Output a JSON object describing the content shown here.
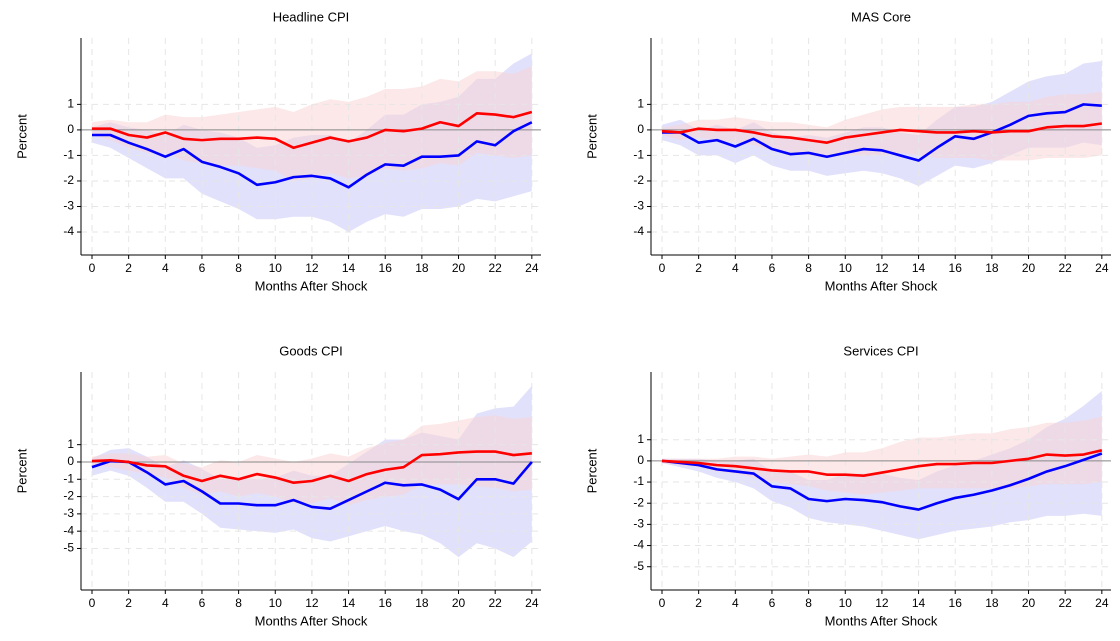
{
  "chart_data": [
    {
      "type": "line",
      "title": "Headline CPI",
      "xlabel": "Months After Shock",
      "ylabel": "Percent",
      "x": [
        0,
        1,
        2,
        3,
        4,
        5,
        6,
        7,
        8,
        9,
        10,
        11,
        12,
        13,
        14,
        15,
        16,
        17,
        18,
        19,
        20,
        21,
        22,
        23,
        24
      ],
      "xlim": [
        -0.6,
        24.5
      ],
      "xticks": [
        0,
        2,
        4,
        6,
        8,
        10,
        12,
        14,
        16,
        18,
        20,
        22,
        24
      ],
      "ylim": [
        -4.9,
        3.6
      ],
      "yticks": [
        -4,
        -3,
        -2,
        -1,
        0,
        1
      ],
      "grid": true,
      "series": [
        {
          "color": "#0000ff",
          "band_color": "#c8c8fa",
          "values": [
            -0.2,
            -0.2,
            -0.5,
            -0.75,
            -1.05,
            -0.75,
            -1.25,
            -1.45,
            -1.7,
            -2.15,
            -2.05,
            -1.85,
            -1.8,
            -1.9,
            -2.25,
            -1.75,
            -1.35,
            -1.4,
            -1.05,
            -1.05,
            -1.0,
            -0.45,
            -0.6,
            -0.05,
            0.3
          ],
          "lower": [
            -0.5,
            -0.7,
            -1.1,
            -1.5,
            -1.9,
            -1.9,
            -2.5,
            -2.8,
            -3.1,
            -3.5,
            -3.5,
            -3.4,
            -3.4,
            -3.6,
            -4.0,
            -3.6,
            -3.3,
            -3.4,
            -3.1,
            -3.1,
            -3.0,
            -2.7,
            -2.8,
            -2.6,
            -2.4
          ],
          "upper": [
            0.1,
            0.3,
            0.1,
            0,
            -0.2,
            0.2,
            0,
            -0.1,
            -0.3,
            -0.7,
            -0.6,
            -0.3,
            -0.2,
            -0.2,
            -0.5,
            0,
            0.6,
            0.6,
            1.0,
            1.1,
            1.3,
            2.0,
            2.0,
            2.6,
            3.0
          ]
        },
        {
          "color": "#ff0000",
          "band_color": "#fad6d6",
          "values": [
            0.05,
            0.05,
            -0.2,
            -0.3,
            -0.1,
            -0.35,
            -0.4,
            -0.35,
            -0.35,
            -0.3,
            -0.35,
            -0.7,
            -0.5,
            -0.3,
            -0.45,
            -0.3,
            0.0,
            -0.05,
            0.05,
            0.3,
            0.15,
            0.65,
            0.6,
            0.5,
            0.7
          ],
          "lower": [
            -0.2,
            -0.4,
            -0.7,
            -0.9,
            -0.9,
            -1.2,
            -1.3,
            -1.4,
            -1.4,
            -1.5,
            -1.6,
            -2.0,
            -1.9,
            -1.7,
            -1.9,
            -1.8,
            -1.5,
            -1.6,
            -1.5,
            -1.3,
            -1.4,
            -0.9,
            -1.0,
            -1.1,
            -1.0
          ],
          "upper": [
            0.3,
            0.4,
            0.3,
            0.3,
            0.6,
            0.5,
            0.5,
            0.6,
            0.7,
            0.8,
            0.9,
            0.7,
            1.0,
            1.2,
            1.1,
            1.3,
            1.6,
            1.6,
            1.7,
            2.0,
            1.9,
            2.3,
            2.3,
            2.2,
            2.5
          ]
        }
      ]
    },
    {
      "type": "line",
      "title": "MAS Core",
      "xlabel": "Months After Shock",
      "ylabel": "Percent",
      "x": [
        0,
        1,
        2,
        3,
        4,
        5,
        6,
        7,
        8,
        9,
        10,
        11,
        12,
        13,
        14,
        15,
        16,
        17,
        18,
        19,
        20,
        21,
        22,
        23,
        24
      ],
      "xlim": [
        -0.6,
        24.5
      ],
      "xticks": [
        0,
        2,
        4,
        6,
        8,
        10,
        12,
        14,
        16,
        18,
        20,
        22,
        24
      ],
      "ylim": [
        -4.9,
        3.6
      ],
      "yticks": [
        -4,
        -3,
        -2,
        -1,
        0,
        1
      ],
      "grid": true,
      "series": [
        {
          "color": "#0000ff",
          "band_color": "#c8c8fa",
          "values": [
            -0.1,
            -0.1,
            -0.5,
            -0.4,
            -0.65,
            -0.35,
            -0.75,
            -0.95,
            -0.9,
            -1.05,
            -0.9,
            -0.75,
            -0.8,
            -1.0,
            -1.2,
            -0.7,
            -0.25,
            -0.35,
            -0.1,
            0.2,
            0.55,
            0.65,
            0.7,
            1.0,
            0.95
          ],
          "lower": [
            -0.4,
            -0.6,
            -1.0,
            -1.0,
            -1.3,
            -1.0,
            -1.4,
            -1.6,
            -1.6,
            -1.8,
            -1.7,
            -1.6,
            -1.7,
            -1.9,
            -2.2,
            -1.8,
            -1.4,
            -1.5,
            -1.3,
            -1.0,
            -0.7,
            -0.7,
            -0.7,
            -0.5,
            -0.6
          ],
          "upper": [
            0.2,
            0.4,
            0,
            0.2,
            0,
            0.3,
            -0.1,
            -0.3,
            -0.2,
            -0.3,
            -0.1,
            0.1,
            0.1,
            -0.1,
            -0.2,
            0.4,
            0.9,
            0.9,
            1.1,
            1.5,
            1.9,
            2.1,
            2.2,
            2.6,
            2.7
          ]
        },
        {
          "color": "#ff0000",
          "band_color": "#fad6d6",
          "values": [
            -0.05,
            -0.1,
            0.05,
            0,
            0,
            -0.1,
            -0.25,
            -0.3,
            -0.4,
            -0.5,
            -0.3,
            -0.2,
            -0.1,
            0,
            -0.05,
            -0.1,
            -0.1,
            -0.05,
            -0.1,
            -0.05,
            -0.05,
            0.1,
            0.15,
            0.15,
            0.25
          ],
          "lower": [
            -0.2,
            -0.4,
            -0.3,
            -0.4,
            -0.5,
            -0.6,
            -0.8,
            -0.9,
            -1.0,
            -1.1,
            -1.0,
            -1.0,
            -1.0,
            -0.9,
            -1.0,
            -1.1,
            -1.1,
            -1.1,
            -1.2,
            -1.2,
            -1.2,
            -1.1,
            -1.1,
            -1.1,
            -1.0
          ],
          "upper": [
            0.1,
            0.2,
            0.4,
            0.4,
            0.5,
            0.4,
            0.3,
            0.3,
            0.2,
            0.1,
            0.4,
            0.6,
            0.8,
            0.9,
            0.9,
            0.9,
            0.9,
            1.0,
            1.0,
            1.1,
            1.1,
            1.3,
            1.4,
            1.4,
            1.5
          ]
        }
      ]
    },
    {
      "type": "line",
      "title": "Goods CPI",
      "xlabel": "Months After Shock",
      "ylabel": "Percent",
      "x": [
        0,
        1,
        2,
        3,
        4,
        5,
        6,
        7,
        8,
        9,
        10,
        11,
        12,
        13,
        14,
        15,
        16,
        17,
        18,
        19,
        20,
        21,
        22,
        23,
        24
      ],
      "xlim": [
        -0.6,
        24.5
      ],
      "xticks": [
        0,
        2,
        4,
        6,
        8,
        10,
        12,
        14,
        16,
        18,
        20,
        22,
        24
      ],
      "ylim": [
        -7.4,
        5.2
      ],
      "yticks": [
        -5,
        -4,
        -3,
        -2,
        -1,
        0,
        1
      ],
      "grid": true,
      "series": [
        {
          "color": "#0000ff",
          "band_color": "#c8c8fa",
          "values": [
            -0.3,
            0.05,
            0,
            -0.6,
            -1.3,
            -1.1,
            -1.7,
            -2.4,
            -2.4,
            -2.5,
            -2.5,
            -2.2,
            -2.6,
            -2.7,
            -2.2,
            -1.7,
            -1.2,
            -1.35,
            -1.3,
            -1.6,
            -2.15,
            -1.0,
            -1.0,
            -1.25,
            0.0
          ],
          "lower": [
            -0.8,
            -0.5,
            -0.8,
            -1.5,
            -2.3,
            -2.3,
            -3.0,
            -3.8,
            -3.9,
            -4.0,
            -4.1,
            -3.9,
            -4.4,
            -4.6,
            -4.3,
            -4.0,
            -3.7,
            -4.0,
            -4.2,
            -4.7,
            -5.5,
            -4.7,
            -5.0,
            -5.5,
            -4.6
          ],
          "upper": [
            0.2,
            0.7,
            0.8,
            0.3,
            -0.3,
            0.1,
            -0.4,
            -1.0,
            -0.9,
            -1.0,
            -0.9,
            -0.5,
            -0.8,
            -0.8,
            -0.1,
            0.6,
            1.3,
            1.3,
            1.7,
            1.5,
            1.3,
            2.8,
            3.1,
            3.2,
            4.4
          ]
        },
        {
          "color": "#ff0000",
          "band_color": "#fad6d6",
          "values": [
            0.05,
            0.1,
            0.0,
            -0.2,
            -0.25,
            -0.8,
            -1.1,
            -0.8,
            -1.0,
            -0.7,
            -0.9,
            -1.2,
            -1.1,
            -0.8,
            -1.1,
            -0.7,
            -0.45,
            -0.3,
            0.4,
            0.45,
            0.55,
            0.6,
            0.6,
            0.4,
            0.5
          ],
          "lower": [
            -0.2,
            -0.3,
            -0.5,
            -0.7,
            -0.9,
            -1.5,
            -1.9,
            -1.7,
            -2.0,
            -1.8,
            -2.0,
            -2.4,
            -2.4,
            -2.1,
            -2.5,
            -2.2,
            -2.0,
            -1.9,
            -1.3,
            -1.3,
            -1.3,
            -1.4,
            -1.5,
            -1.7,
            -1.6
          ],
          "upper": [
            0.3,
            0.5,
            0.5,
            0.3,
            0.4,
            -0.1,
            -0.3,
            0.1,
            0,
            0.4,
            0.2,
            0,
            0.2,
            0.5,
            0.3,
            0.8,
            1.1,
            1.3,
            2.1,
            2.2,
            2.4,
            2.6,
            2.7,
            2.5,
            2.6
          ]
        }
      ]
    },
    {
      "type": "line",
      "title": "Services CPI",
      "xlabel": "Months After Shock",
      "ylabel": "Percent",
      "x": [
        0,
        1,
        2,
        3,
        4,
        5,
        6,
        7,
        8,
        9,
        10,
        11,
        12,
        13,
        14,
        15,
        16,
        17,
        18,
        19,
        20,
        21,
        22,
        23,
        24
      ],
      "xlim": [
        -0.6,
        24.5
      ],
      "xticks": [
        0,
        2,
        4,
        6,
        8,
        10,
        12,
        14,
        16,
        18,
        20,
        22,
        24
      ],
      "ylim": [
        -6.1,
        4.2
      ],
      "yticks": [
        -5,
        -4,
        -3,
        -2,
        -1,
        0,
        1
      ],
      "grid": true,
      "series": [
        {
          "color": "#0000ff",
          "band_color": "#c8c8fa",
          "values": [
            0,
            -0.1,
            -0.2,
            -0.4,
            -0.5,
            -0.6,
            -1.2,
            -1.3,
            -1.8,
            -1.9,
            -1.8,
            -1.85,
            -1.95,
            -2.15,
            -2.3,
            -2.0,
            -1.75,
            -1.6,
            -1.4,
            -1.15,
            -0.85,
            -0.5,
            -0.25,
            0.05,
            0.35
          ],
          "lower": [
            -0.1,
            -0.3,
            -0.5,
            -0.8,
            -1.0,
            -1.3,
            -1.9,
            -2.2,
            -2.7,
            -2.9,
            -3.0,
            -3.1,
            -3.3,
            -3.5,
            -3.7,
            -3.5,
            -3.3,
            -3.2,
            -3.1,
            -2.9,
            -2.8,
            -2.6,
            -2.6,
            -2.5,
            -2.6
          ],
          "upper": [
            0.1,
            0.1,
            0.1,
            0,
            0,
            0.1,
            -0.5,
            -0.5,
            -0.9,
            -0.9,
            -0.6,
            -0.6,
            -0.6,
            -0.8,
            -0.9,
            -0.5,
            -0.2,
            0,
            0.3,
            0.6,
            1.0,
            1.6,
            2.0,
            2.6,
            3.3
          ]
        },
        {
          "color": "#ff0000",
          "band_color": "#fad6d6",
          "values": [
            0,
            -0.05,
            -0.1,
            -0.2,
            -0.25,
            -0.35,
            -0.45,
            -0.5,
            -0.5,
            -0.65,
            -0.65,
            -0.7,
            -0.55,
            -0.4,
            -0.25,
            -0.15,
            -0.15,
            -0.1,
            -0.1,
            0.0,
            0.1,
            0.3,
            0.25,
            0.3,
            0.5
          ],
          "lower": [
            -0.1,
            -0.2,
            -0.3,
            -0.5,
            -0.6,
            -0.8,
            -1.0,
            -1.1,
            -1.2,
            -1.4,
            -1.5,
            -1.6,
            -1.5,
            -1.4,
            -1.3,
            -1.3,
            -1.3,
            -1.3,
            -1.3,
            -1.3,
            -1.2,
            -1.1,
            -1.1,
            -1.1,
            -1.0
          ],
          "upper": [
            0.1,
            0.1,
            0.1,
            0.1,
            0.2,
            0.2,
            0.1,
            0.2,
            0.3,
            0.2,
            0.4,
            0.4,
            0.6,
            0.9,
            1.1,
            1.1,
            1.2,
            1.3,
            1.3,
            1.5,
            1.6,
            1.8,
            1.8,
            1.9,
            2.1
          ]
        }
      ]
    }
  ]
}
